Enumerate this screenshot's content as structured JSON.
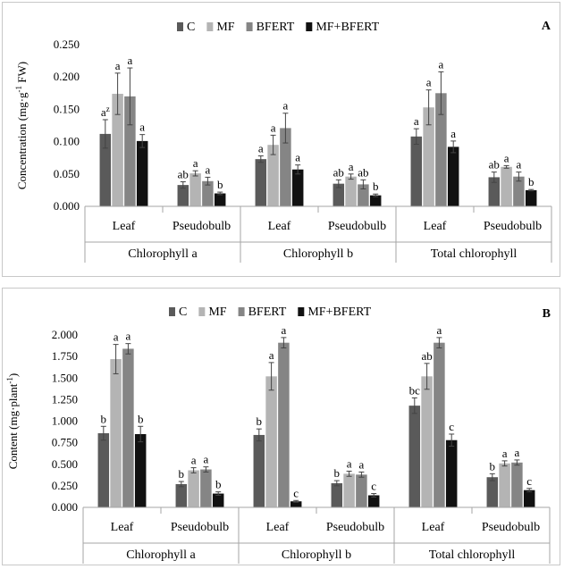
{
  "colors": {
    "C": "#5a5a5a",
    "MF": "#b4b4b4",
    "BFERT": "#858585",
    "MF+BFERT": "#111111"
  },
  "chart_data": [
    {
      "type": "bar",
      "panel_label": "A",
      "title": "",
      "ylabel": "Concentration (mg·g",
      "ylabel_sup": "-1",
      "ylabel_tail": " FW)",
      "ylim": [
        0,
        0.25
      ],
      "yticks": [
        "0.000",
        "0.050",
        "0.100",
        "0.150",
        "0.200",
        "0.250"
      ],
      "grid": false,
      "legend_position": "top",
      "groups": [
        "Chlorophyll a",
        "Chlorophyll b",
        "Total chlorophyll"
      ],
      "categories": [
        "Leaf",
        "Pseudobulb",
        "Leaf",
        "Pseudobulb",
        "Leaf",
        "Pseudobulb"
      ],
      "series": [
        {
          "name": "C",
          "values": [
            0.112,
            0.033,
            0.073,
            0.035,
            0.108,
            0.045
          ],
          "errors": [
            0.022,
            0.005,
            0.005,
            0.006,
            0.012,
            0.008
          ],
          "labels": [
            "a",
            "ab",
            "a",
            "ab",
            "a",
            "ab"
          ],
          "label_sup": [
            "z",
            "",
            "",
            "",
            "",
            ""
          ]
        },
        {
          "name": "MF",
          "values": [
            0.174,
            0.051,
            0.095,
            0.046,
            0.153,
            0.061
          ],
          "errors": [
            0.032,
            0.004,
            0.015,
            0.004,
            0.027,
            0.002
          ],
          "labels": [
            "a",
            "a",
            "a",
            "a",
            "a",
            "a"
          ],
          "label_sup": [
            "",
            "",
            "",
            "",
            "",
            ""
          ]
        },
        {
          "name": "BFERT",
          "values": [
            0.17,
            0.039,
            0.121,
            0.034,
            0.175,
            0.046
          ],
          "errors": [
            0.044,
            0.006,
            0.023,
            0.007,
            0.033,
            0.007
          ],
          "labels": [
            "a",
            "a",
            "a",
            "ab",
            "a",
            "a"
          ],
          "label_sup": [
            "",
            "",
            "",
            "",
            "",
            ""
          ]
        },
        {
          "name": "MF+BFERT",
          "values": [
            0.101,
            0.02,
            0.057,
            0.017,
            0.092,
            0.025
          ],
          "errors": [
            0.01,
            0.002,
            0.007,
            0.002,
            0.009,
            0.001
          ],
          "labels": [
            "a",
            "b",
            "a",
            "b",
            "a",
            "b"
          ],
          "label_sup": [
            "",
            "",
            "",
            "",
            "",
            ""
          ]
        }
      ]
    },
    {
      "type": "bar",
      "panel_label": "B",
      "title": "",
      "ylabel": "Content (mg·plant",
      "ylabel_sup": "-1",
      "ylabel_tail": ")",
      "ylim": [
        0,
        2.0
      ],
      "yticks": [
        "0.000",
        "0.250",
        "0.500",
        "0.750",
        "1.000",
        "1.250",
        "1.500",
        "1.750",
        "2.000"
      ],
      "grid": false,
      "legend_position": "top",
      "groups": [
        "Chlorophyll a",
        "Chlorophyll b",
        "Total chlorophyll"
      ],
      "categories": [
        "Leaf",
        "Pseudobulb",
        "Leaf",
        "Pseudobulb",
        "Leaf",
        "Pseudobulb"
      ],
      "series": [
        {
          "name": "C",
          "values": [
            0.86,
            0.27,
            0.84,
            0.28,
            1.18,
            0.35
          ],
          "errors": [
            0.08,
            0.03,
            0.07,
            0.03,
            0.09,
            0.04
          ],
          "labels": [
            "b",
            "b",
            "b",
            "b",
            "bc",
            "b"
          ],
          "label_sup": [
            "",
            "",
            "",
            "",
            "",
            ""
          ]
        },
        {
          "name": "MF",
          "values": [
            1.72,
            0.43,
            1.52,
            0.39,
            1.52,
            0.51
          ],
          "errors": [
            0.17,
            0.03,
            0.16,
            0.03,
            0.15,
            0.03
          ],
          "labels": [
            "a",
            "a",
            "a",
            "a",
            "ab",
            "a"
          ],
          "label_sup": [
            "",
            "",
            "",
            "",
            "",
            ""
          ]
        },
        {
          "name": "BFERT",
          "values": [
            1.84,
            0.44,
            1.91,
            0.38,
            1.91,
            0.52
          ],
          "errors": [
            0.06,
            0.03,
            0.06,
            0.03,
            0.06,
            0.03
          ],
          "labels": [
            "a",
            "a",
            "a",
            "a",
            "a",
            "a"
          ],
          "label_sup": [
            "",
            "",
            "",
            "",
            "",
            ""
          ]
        },
        {
          "name": "MF+BFERT",
          "values": [
            0.85,
            0.16,
            0.07,
            0.14,
            0.78,
            0.2
          ],
          "errors": [
            0.09,
            0.02,
            0.01,
            0.02,
            0.07,
            0.02
          ],
          "labels": [
            "b",
            "b",
            "c",
            "c",
            "c",
            "c"
          ],
          "label_sup": [
            "",
            "",
            "",
            "",
            "",
            ""
          ]
        }
      ]
    }
  ]
}
